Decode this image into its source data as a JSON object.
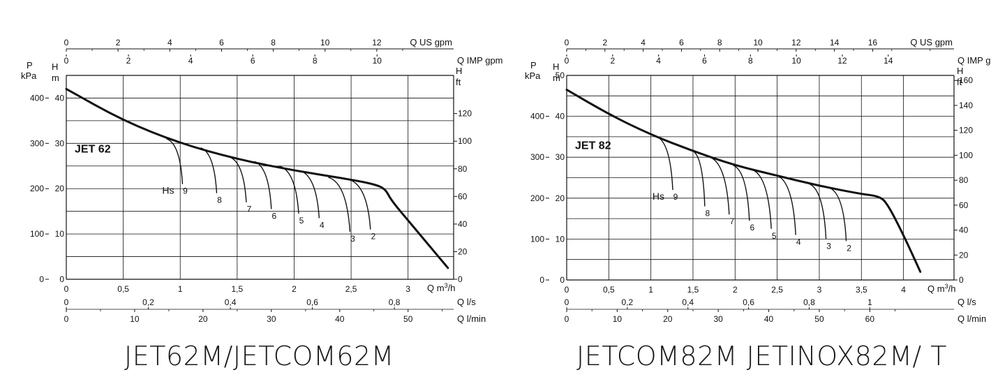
{
  "chart_data": [
    {
      "type": "line",
      "model": "JET 62",
      "caption": "JET62M/JETCOM62M",
      "x_unit": "Q m³/h",
      "xlim": [
        0,
        3.4
      ],
      "y_unit": "H m",
      "ylim": [
        0,
        45
      ],
      "x_ticks": [
        {
          "v": 0,
          "t": "0"
        },
        {
          "v": 0.5,
          "t": "0,5"
        },
        {
          "v": 1,
          "t": "1"
        },
        {
          "v": 1.5,
          "t": "1,5"
        },
        {
          "v": 2,
          "t": "2"
        },
        {
          "v": 2.5,
          "t": "2,5"
        },
        {
          "v": 3,
          "t": "3"
        }
      ],
      "y_left_ticks": [
        0,
        10,
        20,
        30,
        40
      ],
      "p_ticks": [
        0,
        100,
        200,
        300,
        400
      ],
      "p_unit": [
        "P",
        "kPa"
      ],
      "ft_unit": [
        "H",
        "ft"
      ],
      "ft_ticks": [
        0,
        20,
        40,
        60,
        80,
        100,
        120
      ],
      "gpm_us_unit": "Q US gpm",
      "gpm_us_ticks": [
        0,
        2,
        4,
        6,
        8,
        10,
        12
      ],
      "gpm_imp_unit": "Q IMP gpm",
      "gpm_imp_ticks": [
        0,
        2,
        4,
        6,
        8,
        10
      ],
      "ls_unit": "Q l/s",
      "ls_ticks": [
        {
          "v": 0,
          "t": "0"
        },
        {
          "v": 0.2,
          "t": "0,2"
        },
        {
          "v": 0.4,
          "t": "0,4"
        },
        {
          "v": 0.6,
          "t": "0,6"
        },
        {
          "v": 0.8,
          "t": "0,8"
        }
      ],
      "lmin_unit": "Q l/min",
      "lmin_ticks": [
        0,
        10,
        20,
        30,
        40,
        50
      ],
      "main_curve": [
        [
          0,
          42
        ],
        [
          0.5,
          35
        ],
        [
          1,
          30
        ],
        [
          1.5,
          26.5
        ],
        [
          2,
          24
        ],
        [
          2.5,
          22
        ],
        [
          2.7,
          21
        ],
        [
          2.8,
          20
        ],
        [
          2.85,
          17.5
        ],
        [
          3.0,
          13
        ],
        [
          3.2,
          7
        ],
        [
          3.35,
          2.5
        ]
      ],
      "hs_label": "Hs",
      "suction_curves": [
        {
          "label": "9",
          "pts": [
            [
              0.88,
              31
            ],
            [
              1.02,
              21
            ]
          ]
        },
        {
          "label": "8",
          "pts": [
            [
              1.18,
              29
            ],
            [
              1.32,
              19
            ]
          ]
        },
        {
          "label": "7",
          "pts": [
            [
              1.43,
              27
            ],
            [
              1.58,
              17
            ]
          ]
        },
        {
          "label": "6",
          "pts": [
            [
              1.65,
              26
            ],
            [
              1.8,
              15.5
            ]
          ]
        },
        {
          "label": "5",
          "pts": [
            [
              1.87,
              25
            ],
            [
              2.04,
              14.5
            ]
          ]
        },
        {
          "label": "4",
          "pts": [
            [
              2.05,
              24
            ],
            [
              2.22,
              13.5
            ]
          ]
        },
        {
          "label": "3",
          "pts": [
            [
              2.3,
              22.5
            ],
            [
              2.49,
              10.5
            ]
          ]
        },
        {
          "label": "2",
          "pts": [
            [
              2.48,
              22
            ],
            [
              2.67,
              11
            ]
          ]
        }
      ]
    },
    {
      "type": "line",
      "model": "JET 82",
      "caption": "JETCOM82M JETINOX82M/ T",
      "x_unit": "Q m³/h",
      "xlim": [
        0,
        4.6
      ],
      "y_unit": "H m",
      "ylim": [
        0,
        50
      ],
      "x_ticks": [
        {
          "v": 0,
          "t": "0"
        },
        {
          "v": 0.5,
          "t": "0,5"
        },
        {
          "v": 1,
          "t": "1"
        },
        {
          "v": 1.5,
          "t": "1,5"
        },
        {
          "v": 2,
          "t": "2"
        },
        {
          "v": 2.5,
          "t": "2,5"
        },
        {
          "v": 3,
          "t": "3"
        },
        {
          "v": 3.5,
          "t": "3,5"
        },
        {
          "v": 4,
          "t": "4"
        }
      ],
      "y_left_ticks": [
        0,
        10,
        20,
        30,
        40,
        50
      ],
      "p_ticks": [
        0,
        100,
        200,
        300,
        400
      ],
      "p_unit": [
        "P",
        "kPa"
      ],
      "ft_unit": [
        "H",
        "ft"
      ],
      "ft_ticks": [
        0,
        20,
        40,
        60,
        80,
        100,
        120,
        140,
        160
      ],
      "gpm_us_unit": "Q US gpm",
      "gpm_us_ticks": [
        0,
        2,
        4,
        6,
        8,
        10,
        12,
        14,
        16
      ],
      "gpm_imp_unit": "Q IMP gpm",
      "gpm_imp_ticks": [
        0,
        2,
        4,
        6,
        8,
        10,
        12,
        14
      ],
      "ls_unit": "Q l/s",
      "ls_ticks": [
        {
          "v": 0,
          "t": "0"
        },
        {
          "v": 0.2,
          "t": "0,2"
        },
        {
          "v": 0.4,
          "t": "0,4"
        },
        {
          "v": 0.6,
          "t": "0,6"
        },
        {
          "v": 0.8,
          "t": "0,8"
        },
        {
          "v": 1,
          "t": "1"
        }
      ],
      "lmin_unit": "Q l/min",
      "lmin_ticks": [
        0,
        10,
        20,
        30,
        40,
        50,
        60
      ],
      "main_curve": [
        [
          0,
          46.5
        ],
        [
          0.5,
          40.5
        ],
        [
          1,
          35.5
        ],
        [
          1.5,
          31.5
        ],
        [
          2,
          28
        ],
        [
          2.5,
          25.5
        ],
        [
          3,
          23
        ],
        [
          3.5,
          21
        ],
        [
          3.7,
          20.5
        ],
        [
          3.8,
          19
        ],
        [
          4,
          11
        ],
        [
          4.2,
          2
        ]
      ],
      "hs_label": "Hs",
      "suction_curves": [
        {
          "label": "9",
          "pts": [
            [
              1.07,
              35
            ],
            [
              1.26,
              22
            ]
          ]
        },
        {
          "label": "8",
          "pts": [
            [
              1.5,
              31.5
            ],
            [
              1.64,
              18
            ]
          ]
        },
        {
          "label": "7",
          "pts": [
            [
              1.7,
              30
            ],
            [
              1.93,
              16
            ]
          ]
        },
        {
          "label": "6",
          "pts": [
            [
              1.98,
              28
            ],
            [
              2.17,
              14.5
            ]
          ]
        },
        {
          "label": "5",
          "pts": [
            [
              2.2,
              27
            ],
            [
              2.43,
              12.5
            ]
          ]
        },
        {
          "label": "4",
          "pts": [
            [
              2.5,
              25.5
            ],
            [
              2.72,
              11
            ]
          ]
        },
        {
          "label": "3",
          "pts": [
            [
              2.88,
              23.5
            ],
            [
              3.08,
              10
            ]
          ]
        },
        {
          "label": "2",
          "pts": [
            [
              3.12,
              22.5
            ],
            [
              3.32,
              9.5
            ]
          ]
        }
      ]
    }
  ]
}
